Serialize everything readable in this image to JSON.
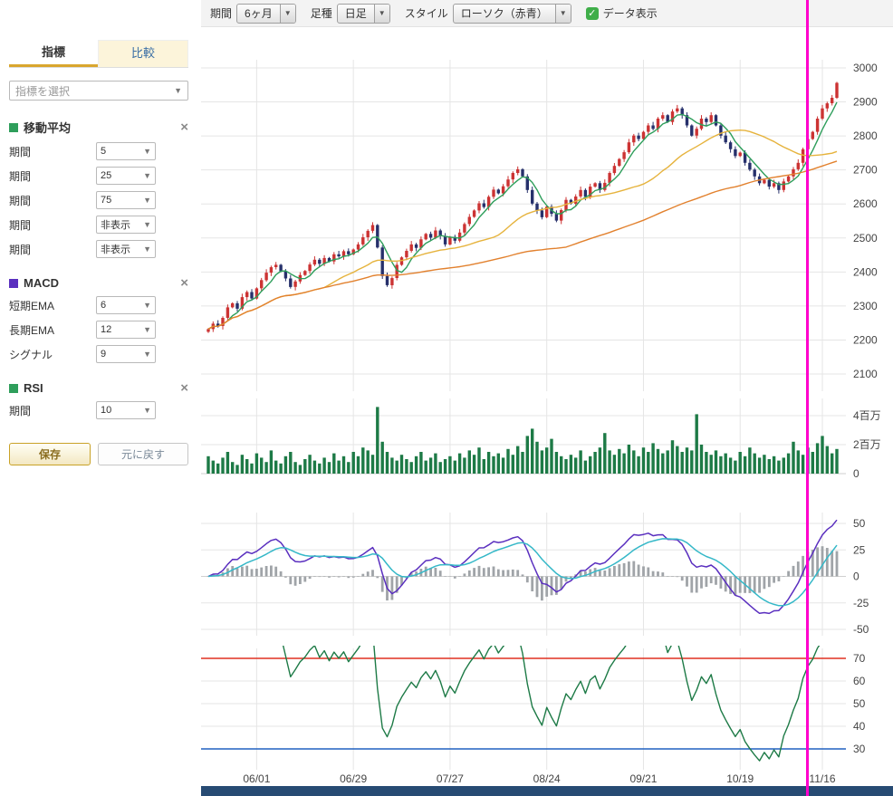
{
  "icons": {
    "check": "✓",
    "arrow_down": "▼",
    "close": "×"
  },
  "sidebar": {
    "tabs": [
      {
        "label": "指標",
        "active": true
      },
      {
        "label": "比較",
        "active": false
      }
    ],
    "indicator_select_placeholder": "指標を選択",
    "sections": [
      {
        "id": "ma",
        "title": "移動平均",
        "color": "#2e9e5b",
        "rows": [
          {
            "label": "期間",
            "value": "5"
          },
          {
            "label": "期間",
            "value": "25"
          },
          {
            "label": "期間",
            "value": "75"
          },
          {
            "label": "期間",
            "value": "非表示"
          },
          {
            "label": "期間",
            "value": "非表示"
          }
        ]
      },
      {
        "id": "macd",
        "title": "MACD",
        "color": "#5a2fbf",
        "rows": [
          {
            "label": "短期EMA",
            "value": "6"
          },
          {
            "label": "長期EMA",
            "value": "12"
          },
          {
            "label": "シグナル",
            "value": "9"
          }
        ]
      },
      {
        "id": "rsi",
        "title": "RSI",
        "color": "#2e9e5b",
        "rows": [
          {
            "label": "期間",
            "value": "10"
          }
        ]
      }
    ],
    "save_label": "保存",
    "reset_label": "元に戻す"
  },
  "toolbar": {
    "period_label": "期間",
    "period_value": "6ヶ月",
    "bartype_label": "足種",
    "bartype_value": "日足",
    "style_label": "スタイル",
    "style_value": "ローソク（赤青）",
    "data_display_label": "データ表示",
    "data_display_checked": true,
    "accent_color": "#3fae49"
  },
  "chart_data": {
    "type": "candlestick",
    "panels": [
      "price",
      "volume",
      "macd",
      "rsi"
    ],
    "x_labels": [
      "06/01",
      "06/29",
      "07/27",
      "08/24",
      "09/21",
      "10/19",
      "11/16"
    ],
    "x_label_indices": [
      10,
      30,
      50,
      70,
      90,
      110,
      127
    ],
    "closes": [
      2232,
      2248,
      2241,
      2265,
      2296,
      2308,
      2292,
      2326,
      2341,
      2322,
      2352,
      2376,
      2398,
      2414,
      2421,
      2402,
      2381,
      2356,
      2372,
      2391,
      2403,
      2422,
      2436,
      2424,
      2441,
      2431,
      2452,
      2446,
      2461,
      2452,
      2466,
      2481,
      2502,
      2521,
      2538,
      2472,
      2388,
      2361,
      2382,
      2421,
      2443,
      2462,
      2481,
      2471,
      2496,
      2512,
      2501,
      2522,
      2506,
      2481,
      2503,
      2492,
      2516,
      2541,
      2562,
      2581,
      2602,
      2591,
      2621,
      2642,
      2631,
      2652,
      2672,
      2691,
      2702,
      2681,
      2641,
      2601,
      2581,
      2561,
      2592,
      2571,
      2551,
      2582,
      2612,
      2601,
      2622,
      2641,
      2621,
      2651,
      2661,
      2641,
      2662,
      2691,
      2712,
      2732,
      2752,
      2781,
      2801,
      2791,
      2812,
      2831,
      2821,
      2851,
      2861,
      2841,
      2872,
      2881,
      2861,
      2831,
      2801,
      2821,
      2851,
      2841,
      2861,
      2831,
      2801,
      2781,
      2761,
      2741,
      2751,
      2721,
      2701,
      2681,
      2661,
      2671,
      2651,
      2661,
      2641,
      2666,
      2681,
      2702,
      2721,
      2761,
      2791,
      2812,
      2851,
      2881,
      2896,
      2912,
      2956
    ],
    "volumes_millions": [
      1.2,
      0.9,
      0.7,
      1.1,
      1.5,
      0.8,
      0.6,
      1.3,
      1.0,
      0.7,
      1.4,
      1.1,
      0.8,
      1.6,
      0.9,
      0.7,
      1.2,
      1.5,
      0.8,
      0.6,
      1.0,
      1.3,
      0.9,
      0.7,
      1.1,
      0.8,
      1.4,
      0.9,
      1.2,
      0.8,
      1.5,
      1.2,
      1.8,
      1.6,
      1.3,
      4.6,
      2.2,
      1.5,
      1.1,
      0.9,
      1.3,
      1.0,
      0.8,
      1.2,
      1.5,
      0.9,
      1.1,
      1.4,
      0.8,
      1.0,
      1.2,
      0.9,
      1.4,
      1.1,
      1.6,
      1.3,
      1.8,
      1.0,
      1.5,
      1.2,
      1.4,
      1.1,
      1.7,
      1.3,
      1.9,
      1.5,
      2.6,
      3.1,
      2.2,
      1.6,
      1.8,
      2.4,
      1.5,
      1.2,
      1.0,
      1.3,
      1.1,
      1.6,
      0.9,
      1.2,
      1.5,
      1.8,
      2.8,
      1.6,
      1.3,
      1.7,
      1.4,
      2.0,
      1.6,
      1.2,
      1.8,
      1.5,
      2.1,
      1.7,
      1.4,
      1.6,
      2.3,
      1.9,
      1.5,
      1.8,
      1.6,
      4.1,
      2.0,
      1.5,
      1.3,
      1.6,
      1.2,
      1.4,
      1.1,
      0.9,
      1.5,
      1.2,
      1.8,
      1.4,
      1.1,
      1.3,
      1.0,
      1.2,
      0.9,
      1.1,
      1.4,
      2.2,
      1.6,
      1.3,
      1.8,
      1.5,
      2.1,
      2.6,
      1.9,
      1.4,
      1.7
    ],
    "price_axis": {
      "min": 2100,
      "max": 3000,
      "tick_step": 100
    },
    "volume_axis": {
      "ticks": [
        0,
        2,
        4
      ],
      "tick_labels": [
        "0",
        "2百万",
        "4百万"
      ]
    },
    "moving_averages": {
      "periods": [
        5,
        25,
        75
      ],
      "colors": [
        "#2e9e5b",
        "#e6b33d",
        "#e2812e"
      ]
    },
    "candle_colors": {
      "up": "#cc3333",
      "down": "#26306b"
    },
    "volume_color": "#1d7a46",
    "macd_panel": {
      "params": {
        "short_ema": 6,
        "long_ema": 12,
        "signal": 9
      },
      "axis": {
        "min": -50,
        "max": 50,
        "tick_step": 25
      },
      "colors": {
        "macd": "#5a2fbf",
        "signal": "#35b8c8",
        "histogram": "#a0a4a8"
      }
    },
    "rsi_panel": {
      "period": 10,
      "axis": {
        "ticks": [
          30,
          40,
          50,
          60,
          70
        ]
      },
      "upper_line": 70,
      "lower_line": 30,
      "colors": {
        "rsi": "#1d7a46",
        "upper": "#e03020",
        "lower": "#2060c0"
      }
    },
    "crosshair": {
      "index": 124,
      "color": "#ff00cc"
    }
  }
}
